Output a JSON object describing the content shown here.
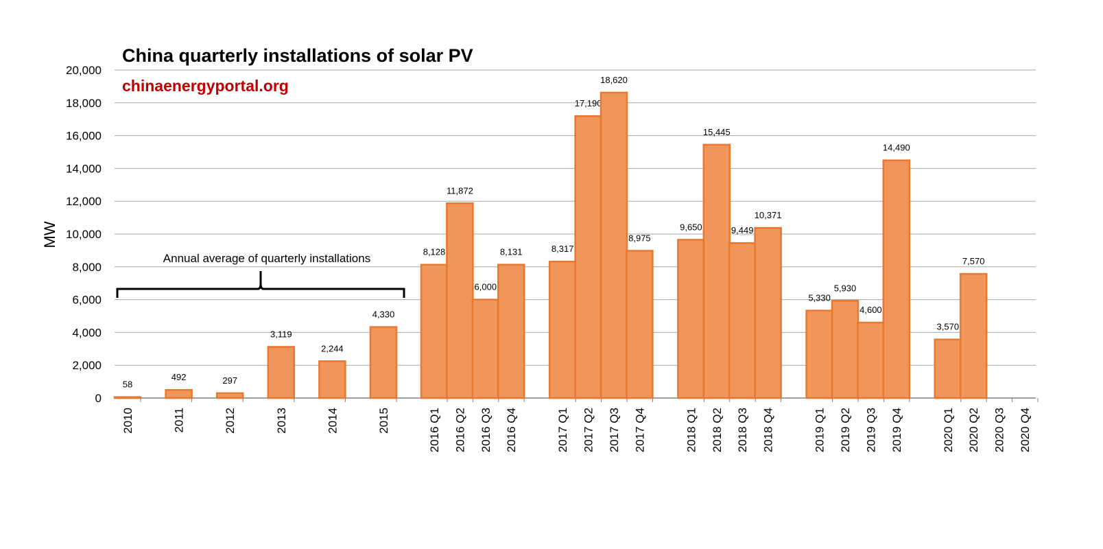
{
  "chart_data": {
    "type": "bar",
    "title": "China quarterly installations of solar PV",
    "subtitle": "chinaenergyportal.org",
    "ylabel": "MW",
    "xlabel": "",
    "ylim": [
      0,
      20000
    ],
    "yticks": [
      0,
      2000,
      4000,
      6000,
      8000,
      10000,
      12000,
      14000,
      16000,
      18000,
      20000
    ],
    "ytick_labels": [
      "0",
      "2,000",
      "4,000",
      "6,000",
      "8,000",
      "10,000",
      "12,000",
      "14,000",
      "16,000",
      "18,000",
      "20,000"
    ],
    "grid": true,
    "bar_color": "#f0965a",
    "bar_edge_color": "#e8782f",
    "categories": [
      "2010",
      "2011",
      "2012",
      "2013",
      "2014",
      "2015",
      "2016 Q1",
      "2016 Q2",
      "2016 Q3",
      "2016 Q4",
      "2017 Q1",
      "2017 Q2",
      "2017 Q3",
      "2017 Q4",
      "2018 Q1",
      "2018 Q2",
      "2018 Q3",
      "2018 Q4",
      "2019 Q1",
      "2019 Q2",
      "2019 Q3",
      "2019 Q4",
      "2020 Q1",
      "2020 Q2",
      "2020 Q3",
      "2020 Q4"
    ],
    "values": [
      58,
      492,
      297,
      3119,
      2244,
      4330,
      8128,
      11872,
      6000,
      8131,
      8317,
      17190,
      18620,
      8975,
      9650,
      15445,
      9449,
      10371,
      5330,
      5930,
      4600,
      14490,
      3570,
      7570,
      null,
      null
    ],
    "value_labels": [
      "58",
      "492",
      "297",
      "3,119",
      "2,244",
      "4,330",
      "8,128",
      "11,872",
      "6,000",
      "8,131",
      "8,317",
      "17,190",
      "18,620",
      "8,975",
      "9,650",
      "15,445",
      "9,449",
      "10,371",
      "5,330",
      "5,930",
      "4,600",
      "14,490",
      "3,570",
      "7,570",
      "",
      ""
    ],
    "annotation": "Annual average of quarterly installations"
  }
}
